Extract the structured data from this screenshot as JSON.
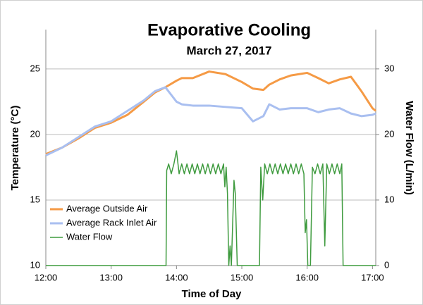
{
  "chart_data": {
    "type": "line",
    "title": "Evaporative Cooling",
    "subtitle": "March 27, 2017",
    "xlabel": "Time of Day",
    "ylabel": "Temperature (°C)",
    "y2label": "Water Flow (L/min)",
    "xlim": [
      12,
      17.05
    ],
    "xticks": [
      {
        "value": 12,
        "label": "12:00"
      },
      {
        "value": 13,
        "label": "13:00"
      },
      {
        "value": 14,
        "label": "14:00"
      },
      {
        "value": 15,
        "label": "15:00"
      },
      {
        "value": 16,
        "label": "16:00"
      },
      {
        "value": 17,
        "label": "17:00"
      }
    ],
    "ylim": [
      10,
      28
    ],
    "yticks": [
      10,
      15,
      20,
      25
    ],
    "y2lim": [
      0,
      36
    ],
    "y2ticks": [
      0,
      10,
      20,
      30
    ],
    "grid": true,
    "legend": "lower left",
    "series": [
      {
        "name": "Average Outside Air",
        "color": "#f59a45",
        "x": [
          12,
          12.25,
          12.5,
          12.75,
          13,
          13.25,
          13.5,
          13.67,
          13.83,
          14,
          14.08,
          14.25,
          14.5,
          14.75,
          15,
          15.17,
          15.33,
          15.42,
          15.58,
          15.75,
          16,
          16.17,
          16.33,
          16.5,
          16.67,
          16.83,
          17,
          17.05
        ],
        "values": [
          18.5,
          19.0,
          19.7,
          20.5,
          20.9,
          21.5,
          22.5,
          23.2,
          23.6,
          24.1,
          24.3,
          24.3,
          24.8,
          24.6,
          24.0,
          23.5,
          23.4,
          23.8,
          24.2,
          24.5,
          24.7,
          24.3,
          23.9,
          24.2,
          24.4,
          23.3,
          22.0,
          21.8
        ]
      },
      {
        "name": "Average Rack Inlet Air",
        "color": "#a9bff0",
        "x": [
          12,
          12.25,
          12.5,
          12.75,
          13,
          13.25,
          13.5,
          13.67,
          13.83,
          14,
          14.08,
          14.25,
          14.5,
          14.75,
          15,
          15.17,
          15.33,
          15.42,
          15.58,
          15.75,
          16,
          16.17,
          16.33,
          16.5,
          16.67,
          16.83,
          17,
          17.05
        ],
        "values": [
          18.4,
          19.0,
          19.8,
          20.6,
          21.0,
          21.8,
          22.6,
          23.3,
          23.6,
          22.5,
          22.3,
          22.2,
          22.2,
          22.1,
          22.0,
          21.0,
          21.4,
          22.3,
          21.9,
          22.0,
          22.0,
          21.7,
          21.9,
          22.0,
          21.6,
          21.4,
          21.5,
          21.6
        ]
      },
      {
        "name": "Water Flow",
        "color": "#3f9b3f",
        "axis": "y2",
        "x": [
          12,
          13.84,
          13.85,
          13.88,
          13.92,
          13.96,
          14.0,
          14.04,
          14.08,
          14.12,
          14.16,
          14.2,
          14.24,
          14.28,
          14.32,
          14.36,
          14.4,
          14.44,
          14.48,
          14.52,
          14.56,
          14.6,
          14.64,
          14.68,
          14.72,
          14.74,
          14.76,
          14.78,
          14.8,
          14.82,
          14.84,
          14.88,
          14.9,
          14.93,
          15.27,
          15.29,
          15.32,
          15.35,
          15.39,
          15.43,
          15.47,
          15.51,
          15.55,
          15.59,
          15.63,
          15.67,
          15.71,
          15.75,
          15.79,
          15.83,
          15.87,
          15.91,
          15.95,
          15.97,
          15.99,
          16.01,
          16.05,
          16.08,
          16.12,
          16.16,
          16.2,
          16.24,
          16.27,
          16.3,
          16.34,
          16.38,
          16.42,
          16.46,
          16.5,
          16.53,
          16.55,
          17.05
        ],
        "values": [
          0,
          0,
          14.5,
          15.5,
          14,
          15.5,
          17.5,
          14,
          15.5,
          14,
          15.5,
          14,
          15.5,
          14,
          15.5,
          14,
          15.5,
          14,
          15.5,
          14,
          15.5,
          14,
          15.5,
          14,
          15.5,
          12,
          15,
          11,
          0,
          3,
          0,
          13,
          11,
          0,
          0,
          15,
          10,
          15.5,
          14,
          15.5,
          14,
          15.5,
          14,
          15.5,
          14,
          15.5,
          14,
          15.5,
          14,
          15.5,
          14,
          15.5,
          14,
          5,
          7,
          0,
          0,
          15,
          14,
          15.5,
          14,
          15.5,
          3,
          15.5,
          14,
          15.5,
          14,
          15.5,
          14,
          15.5,
          0,
          0
        ]
      }
    ]
  }
}
